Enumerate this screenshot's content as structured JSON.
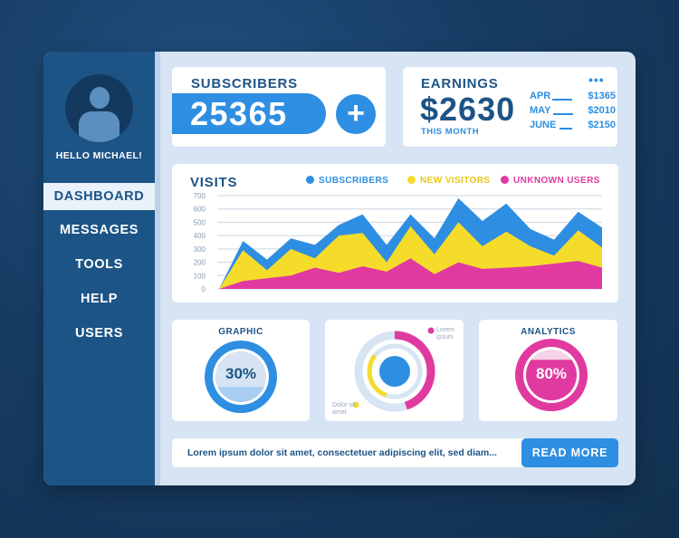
{
  "sidebar": {
    "greeting": "HELLO MICHAEL!",
    "items": [
      {
        "label": "DASHBOARD",
        "active": true
      },
      {
        "label": "MESSAGES"
      },
      {
        "label": "TOOLS"
      },
      {
        "label": "HELP"
      },
      {
        "label": "USERS"
      }
    ]
  },
  "subscribers": {
    "title": "SUBSCRIBERS",
    "value": "25365",
    "add_label": "+"
  },
  "earnings": {
    "title": "EARNINGS",
    "value": "$2630",
    "subtitle": "THIS MONTH",
    "menu_label": "•••",
    "rows": [
      {
        "month": "APR",
        "amount": "$1365"
      },
      {
        "month": "MAY",
        "amount": "$2010"
      },
      {
        "month": "JUNE",
        "amount": "$2150"
      }
    ]
  },
  "visits": {
    "title": "VISITS",
    "legend": [
      {
        "label": "SUBSCRIBERS",
        "color": "#2e8ee2"
      },
      {
        "label": "NEW VISITORS",
        "color": "#f6dc2a"
      },
      {
        "label": "UNKNOWN USERS",
        "color": "#e03aa0"
      }
    ]
  },
  "chart_data": {
    "type": "area",
    "title": "VISITS",
    "ylim": [
      0,
      700
    ],
    "yticks": [
      "0",
      "100",
      "200",
      "300",
      "400",
      "500",
      "600",
      "700"
    ],
    "grid": true,
    "legend_position": "top",
    "x": [
      0,
      1,
      2,
      3,
      4,
      5,
      6,
      7,
      8,
      9,
      10,
      11,
      12,
      13,
      14,
      15,
      16
    ],
    "series": [
      {
        "name": "SUBSCRIBERS",
        "color": "#2e8ee2",
        "values": [
          0,
          360,
          220,
          380,
          330,
          480,
          560,
          330,
          560,
          380,
          680,
          510,
          640,
          450,
          370,
          580,
          460
        ]
      },
      {
        "name": "NEW VISITORS",
        "color": "#f6dc2a",
        "values": [
          0,
          290,
          140,
          300,
          230,
          400,
          420,
          200,
          470,
          260,
          500,
          320,
          430,
          320,
          250,
          440,
          310
        ]
      },
      {
        "name": "UNKNOWN USERS",
        "color": "#e03aa0",
        "values": [
          0,
          60,
          80,
          100,
          160,
          120,
          170,
          130,
          230,
          110,
          200,
          150,
          160,
          170,
          190,
          210,
          160
        ]
      }
    ]
  },
  "graphic": {
    "title": "GRAPHIC",
    "percent_label": "30%",
    "percent": 30
  },
  "donut": {
    "lorem_label": "Lorem ipsum",
    "dolor_label": "Dolor sit amet",
    "outer_percent": 45,
    "inner_percent": 30,
    "colors": {
      "outer": "#e03aa0",
      "inner": "#f6dc2a",
      "center": "#2e8ee2"
    }
  },
  "analytics": {
    "title": "ANALYTICS",
    "percent_label": "80%",
    "percent": 80
  },
  "footer": {
    "text": "Lorem ipsum dolor sit amet, consectetuer adipiscing elit, sed diam...",
    "button_label": "READ MORE"
  }
}
